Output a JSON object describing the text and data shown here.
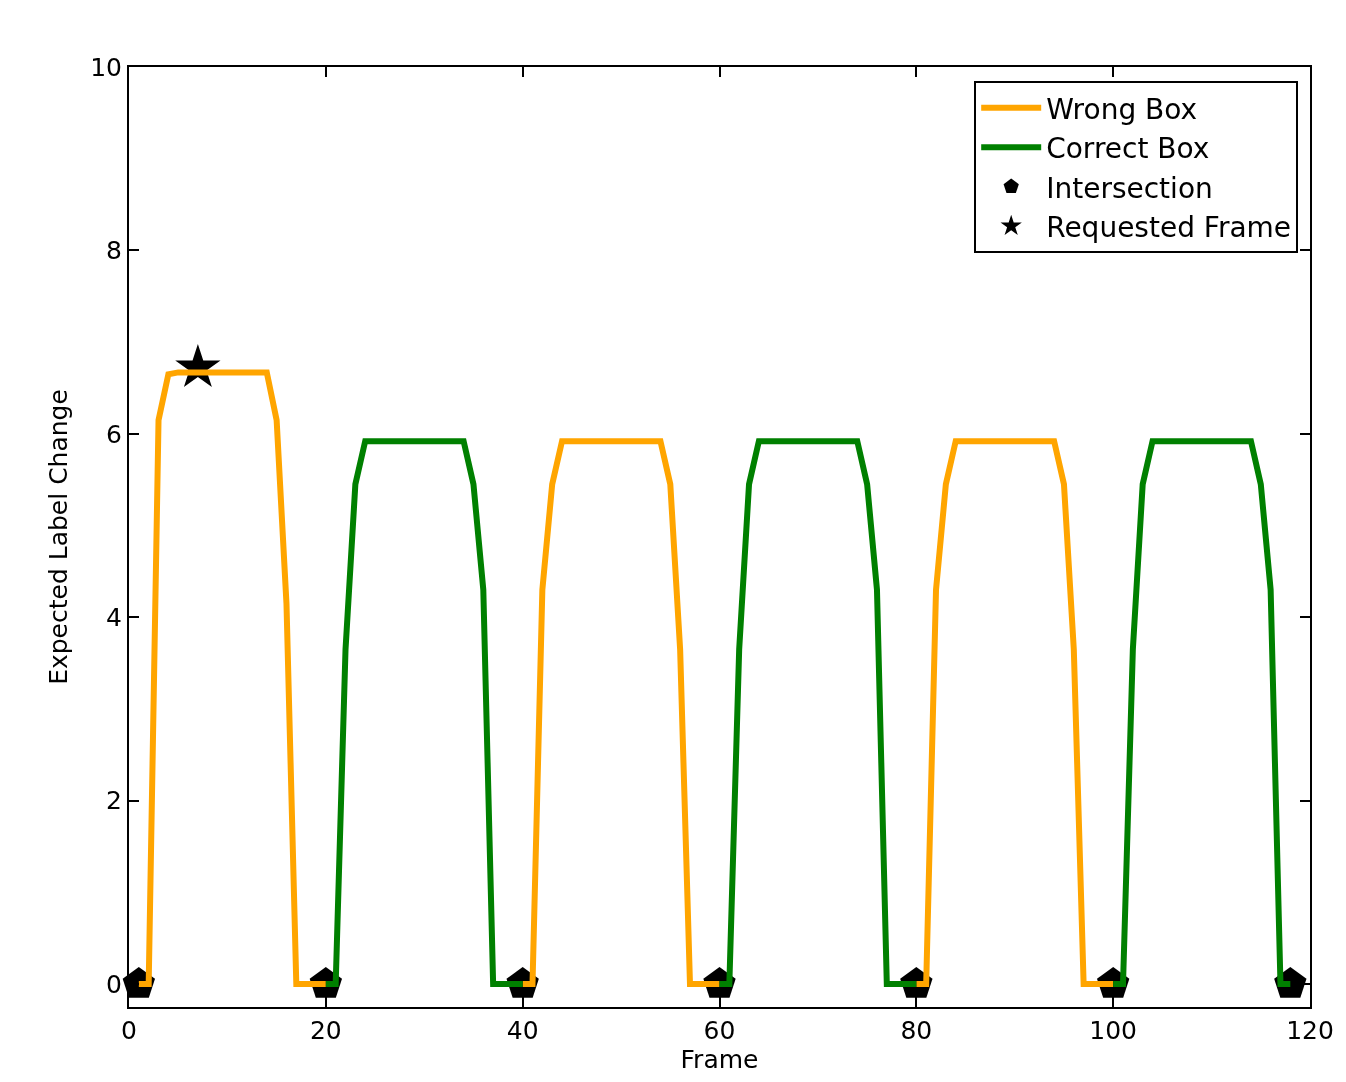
{
  "chart_data": {
    "type": "line",
    "xlabel": "Frame",
    "ylabel": "Expected Label Change",
    "x": [
      1,
      2,
      3,
      4,
      5,
      6,
      7,
      8,
      9,
      10,
      11,
      12,
      13,
      14,
      15,
      16,
      17,
      18,
      19,
      20,
      21,
      22,
      23,
      24,
      25,
      26,
      27,
      28,
      29,
      30,
      31,
      32,
      33,
      34,
      35,
      36,
      37,
      38,
      39,
      40,
      41,
      42,
      43,
      44,
      45,
      46,
      47,
      48,
      49,
      50,
      51,
      52,
      53,
      54,
      55,
      56,
      57,
      58,
      59,
      60,
      61,
      62,
      63,
      64,
      65,
      66,
      67,
      68,
      69,
      70,
      71,
      72,
      73,
      74,
      75,
      76,
      77,
      78,
      79,
      80,
      81,
      82,
      83,
      84,
      85,
      86,
      87,
      88,
      89,
      90,
      91,
      92,
      93,
      94,
      95,
      96,
      97,
      98,
      99,
      100,
      101,
      102,
      103,
      104,
      105,
      106,
      107,
      108,
      109,
      110,
      111,
      112,
      113,
      114,
      115,
      116,
      117,
      118
    ],
    "series": [
      {
        "name": "Wrong Box",
        "color": "#ffa500",
        "marker": "none",
        "values": [
          0,
          0,
          6.15,
          6.65,
          6.67,
          6.67,
          6.67,
          6.67,
          6.67,
          6.67,
          6.67,
          6.67,
          6.67,
          6.67,
          6.15,
          4.15,
          0,
          0,
          0,
          0,
          null,
          null,
          null,
          null,
          null,
          null,
          null,
          null,
          null,
          null,
          null,
          null,
          null,
          null,
          null,
          null,
          null,
          null,
          null,
          0,
          0,
          4.3,
          5.45,
          5.92,
          5.92,
          5.92,
          5.92,
          5.92,
          5.92,
          5.92,
          5.92,
          5.92,
          5.92,
          5.92,
          5.45,
          3.65,
          0,
          0,
          0,
          0,
          null,
          null,
          null,
          null,
          null,
          null,
          null,
          null,
          null,
          null,
          null,
          null,
          null,
          null,
          null,
          null,
          null,
          null,
          null,
          0,
          0,
          4.3,
          5.45,
          5.92,
          5.92,
          5.92,
          5.92,
          5.92,
          5.92,
          5.92,
          5.92,
          5.92,
          5.92,
          5.92,
          5.45,
          3.65,
          0,
          0,
          0,
          0,
          null,
          null,
          null,
          null,
          null,
          null,
          null,
          null,
          null,
          null,
          null,
          null,
          null,
          null,
          null,
          null,
          null,
          null
        ]
      },
      {
        "name": "Correct Box",
        "color": "#008000",
        "marker": "none",
        "values": [
          null,
          null,
          null,
          null,
          null,
          null,
          null,
          null,
          null,
          null,
          null,
          null,
          null,
          null,
          null,
          null,
          null,
          null,
          null,
          0,
          0,
          3.65,
          5.45,
          5.92,
          5.92,
          5.92,
          5.92,
          5.92,
          5.92,
          5.92,
          5.92,
          5.92,
          5.92,
          5.92,
          5.45,
          4.3,
          0,
          0,
          0,
          0,
          null,
          null,
          null,
          null,
          null,
          null,
          null,
          null,
          null,
          null,
          null,
          null,
          null,
          null,
          null,
          null,
          null,
          null,
          null,
          0,
          0,
          3.65,
          5.45,
          5.92,
          5.92,
          5.92,
          5.92,
          5.92,
          5.92,
          5.92,
          5.92,
          5.92,
          5.92,
          5.92,
          5.45,
          4.3,
          0,
          0,
          0,
          0,
          null,
          null,
          null,
          null,
          null,
          null,
          null,
          null,
          null,
          null,
          null,
          null,
          null,
          null,
          null,
          null,
          null,
          null,
          null,
          0,
          0,
          3.65,
          5.45,
          5.92,
          5.92,
          5.92,
          5.92,
          5.92,
          5.92,
          5.92,
          5.92,
          5.92,
          5.92,
          5.92,
          5.45,
          4.3,
          0,
          0
        ]
      },
      {
        "name": "Intersection",
        "color": "#000000",
        "type": "scatter",
        "x": [
          1,
          20,
          40,
          60,
          80,
          100,
          118
        ],
        "values": [
          0,
          0,
          0,
          0,
          0,
          0,
          0
        ]
      },
      {
        "name": "Requested Frame",
        "color": "#000000",
        "type": "scatter",
        "marker": "star",
        "x": [
          7
        ],
        "values": [
          6.72
        ]
      }
    ],
    "xlim": [
      0,
      120
    ],
    "xticks": [
      0,
      20,
      40,
      60,
      80,
      100,
      120
    ],
    "ylim": [
      -0.25,
      10
    ],
    "yticks": [
      0,
      2,
      4,
      6,
      8,
      10
    ],
    "grid": false,
    "legend": "top right"
  }
}
